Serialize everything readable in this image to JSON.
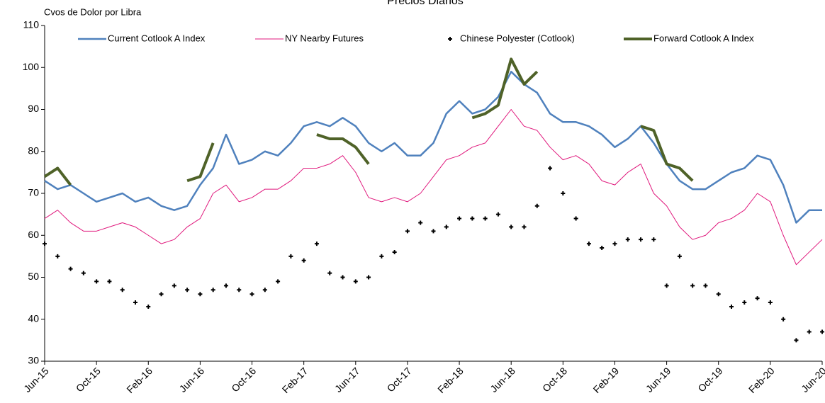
{
  "chart_data": {
    "type": "line",
    "title": "Precios Diarios",
    "y_label": "Cvos de Dolor por Libra",
    "x": [
      "2015-06",
      "2015-07",
      "2015-08",
      "2015-09",
      "2015-10",
      "2015-11",
      "2015-12",
      "2016-01",
      "2016-02",
      "2016-03",
      "2016-04",
      "2016-05",
      "2016-06",
      "2016-07",
      "2016-08",
      "2016-09",
      "2016-10",
      "2016-11",
      "2016-12",
      "2017-01",
      "2017-02",
      "2017-03",
      "2017-04",
      "2017-05",
      "2017-06",
      "2017-07",
      "2017-08",
      "2017-09",
      "2017-10",
      "2017-11",
      "2017-12",
      "2018-01",
      "2018-02",
      "2018-03",
      "2018-04",
      "2018-05",
      "2018-06",
      "2018-07",
      "2018-08",
      "2018-09",
      "2018-10",
      "2018-11",
      "2018-12",
      "2019-01",
      "2019-02",
      "2019-03",
      "2019-04",
      "2019-05",
      "2019-06",
      "2019-07",
      "2019-08",
      "2019-09",
      "2019-10",
      "2019-11",
      "2019-12",
      "2020-01",
      "2020-02",
      "2020-03",
      "2020-04",
      "2020-05",
      "2020-06"
    ],
    "series": [
      {
        "name": "Current Cotlook A Index",
        "color": "#4f81bd",
        "type": "line",
        "values": [
          73,
          71,
          72,
          70,
          68,
          69,
          70,
          68,
          69,
          67,
          66,
          67,
          72,
          76,
          84,
          77,
          78,
          80,
          79,
          82,
          86,
          87,
          86,
          88,
          86,
          82,
          80,
          82,
          79,
          79,
          82,
          89,
          92,
          89,
          90,
          93,
          99,
          96,
          94,
          89,
          87,
          87,
          86,
          84,
          81,
          83,
          86,
          82,
          77,
          73,
          71,
          71,
          73,
          75,
          76,
          79,
          78,
          72,
          63,
          66,
          66
        ]
      },
      {
        "name": "NY Nearby Futures",
        "color": "#e0197d",
        "type": "line",
        "values": [
          64,
          66,
          63,
          61,
          61,
          62,
          63,
          62,
          60,
          58,
          59,
          62,
          64,
          70,
          72,
          68,
          69,
          71,
          71,
          73,
          76,
          76,
          77,
          79,
          75,
          69,
          68,
          69,
          68,
          70,
          74,
          78,
          79,
          81,
          82,
          86,
          90,
          86,
          85,
          81,
          78,
          79,
          77,
          73,
          72,
          75,
          77,
          70,
          67,
          62,
          59,
          60,
          63,
          64,
          66,
          70,
          68,
          60,
          53,
          56,
          59
        ]
      },
      {
        "name": "Chinese Polyester (Cotlook)",
        "color": "#000000",
        "type": "scatter",
        "values": [
          58,
          55,
          52,
          51,
          49,
          49,
          47,
          44,
          43,
          46,
          48,
          47,
          46,
          47,
          48,
          47,
          46,
          47,
          49,
          55,
          54,
          58,
          51,
          50,
          49,
          50,
          55,
          56,
          61,
          63,
          61,
          62,
          64,
          64,
          64,
          65,
          62,
          62,
          67,
          76,
          70,
          64,
          58,
          57,
          58,
          59,
          59,
          59,
          48,
          55,
          48,
          48,
          46,
          43,
          44,
          45,
          44,
          40,
          35,
          37,
          37
        ]
      },
      {
        "name": "Forward Cotlook A Index",
        "color": "#4f6228",
        "type": "line",
        "values": [
          74,
          76,
          72,
          null,
          null,
          null,
          null,
          null,
          null,
          null,
          null,
          73,
          74,
          82,
          null,
          null,
          null,
          null,
          null,
          null,
          null,
          84,
          83,
          83,
          81,
          77,
          null,
          null,
          null,
          null,
          null,
          null,
          null,
          88,
          89,
          91,
          102,
          96,
          99,
          null,
          null,
          null,
          null,
          null,
          null,
          null,
          86,
          85,
          77,
          76,
          73,
          null,
          null,
          null,
          null,
          null,
          null,
          null,
          null,
          null,
          null
        ]
      }
    ],
    "xlim": [
      "2015-06",
      "2020-06"
    ],
    "xticks": [
      {
        "value": "2015-06",
        "label": "Jun-15"
      },
      {
        "value": "2015-10",
        "label": "Oct-15"
      },
      {
        "value": "2016-02",
        "label": "Feb-16"
      },
      {
        "value": "2016-06",
        "label": "Jun-16"
      },
      {
        "value": "2016-10",
        "label": "Oct-16"
      },
      {
        "value": "2017-02",
        "label": "Feb-17"
      },
      {
        "value": "2017-06",
        "label": "Jun-17"
      },
      {
        "value": "2017-10",
        "label": "Oct-17"
      },
      {
        "value": "2018-02",
        "label": "Feb-18"
      },
      {
        "value": "2018-06",
        "label": "Jun-18"
      },
      {
        "value": "2018-10",
        "label": "Oct-18"
      },
      {
        "value": "2019-02",
        "label": "Feb-19"
      },
      {
        "value": "2019-06",
        "label": "Jun-19"
      },
      {
        "value": "2019-10",
        "label": "Oct-19"
      },
      {
        "value": "2020-02",
        "label": "Feb-20"
      },
      {
        "value": "2020-06",
        "label": "Jun-20"
      }
    ],
    "ylim": [
      30,
      110
    ],
    "yticks": [
      30,
      40,
      50,
      60,
      70,
      80,
      90,
      100,
      110
    ],
    "grid": false,
    "legend": "top"
  }
}
